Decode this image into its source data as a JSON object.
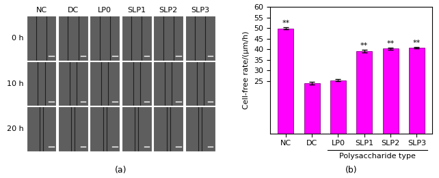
{
  "panel_a": {
    "label": "(a)",
    "columns": [
      "NC",
      "DC",
      "LP0",
      "SLP1",
      "SLP2",
      "SLP3"
    ],
    "rows": [
      "0 h",
      "10 h",
      "20 h"
    ]
  },
  "chart_data": {
    "type": "bar",
    "panel_label": "(b)",
    "y_label": "Cell-free rate/(μm/h)",
    "categories": [
      "NC",
      "DC",
      "LP0",
      "SLP1",
      "SLP2",
      "SLP3"
    ],
    "values": [
      49.8,
      23.8,
      25.2,
      39.1,
      40.3,
      40.7
    ],
    "errors": [
      0.5,
      0.6,
      0.5,
      0.6,
      0.5,
      0.3
    ],
    "significance": [
      "**",
      null,
      null,
      "**",
      "**",
      "**"
    ],
    "group_label": "Polysaccharide type",
    "group_categories": [
      "LP0",
      "SLP1",
      "SLP2",
      "SLP3"
    ],
    "color": "#ff00ff",
    "ylim": [
      0,
      60
    ],
    "yticks": [
      25,
      30,
      35,
      40,
      45,
      50,
      55,
      60
    ]
  }
}
